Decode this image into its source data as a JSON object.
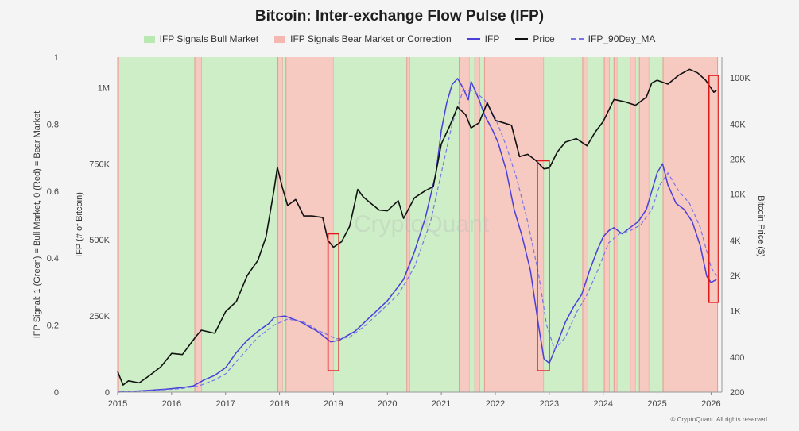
{
  "chart_data": {
    "type": "line",
    "title": "Bitcoin: Inter-exchange Flow Pulse (IFP)",
    "legend": [
      {
        "label": "IFP Signals Bull Market",
        "kind": "box",
        "color": "#b9e8b0"
      },
      {
        "label": "IFP Signals Bear Market or Correction",
        "kind": "box",
        "color": "#f5b8b0"
      },
      {
        "label": "IFP",
        "kind": "line",
        "color": "#4a3fd8"
      },
      {
        "label": "Price",
        "kind": "line",
        "color": "#111111"
      },
      {
        "label": "IFP_90Day_MA",
        "kind": "dash",
        "color": "#7a74e6"
      }
    ],
    "y_left_outer": {
      "label": "IFP Signal: 1 (Green) = Bull Market, 0 (Red) = Bear Market",
      "range": [
        0,
        1
      ],
      "ticks": [
        "0",
        "0.2",
        "0.4",
        "0.6",
        "0.8",
        "1"
      ]
    },
    "y_left_inner": {
      "label": "IFP (# of Bitcoin)",
      "range": [
        0,
        1100000
      ],
      "ticks": [
        {
          "v": 0,
          "label": "0"
        },
        {
          "v": 250000,
          "label": "250K"
        },
        {
          "v": 500000,
          "label": "500K"
        },
        {
          "v": 750000,
          "label": "750K"
        },
        {
          "v": 1000000,
          "label": "1M"
        }
      ]
    },
    "y_right": {
      "label": "Bitcoin Price ($)",
      "scale": "log",
      "range": [
        200,
        150000
      ],
      "ticks": [
        {
          "v": 200,
          "label": "200"
        },
        {
          "v": 400,
          "label": "400"
        },
        {
          "v": 1000,
          "label": "1K"
        },
        {
          "v": 2000,
          "label": "2K"
        },
        {
          "v": 4000,
          "label": "4K"
        },
        {
          "v": 10000,
          "label": "10K"
        },
        {
          "v": 20000,
          "label": "20K"
        },
        {
          "v": 40000,
          "label": "40K"
        },
        {
          "v": 100000,
          "label": "100K"
        }
      ]
    },
    "x_axis": {
      "range": [
        2015.0,
        2026.2
      ],
      "ticks": [
        {
          "v": 2015,
          "label": "2015"
        },
        {
          "v": 2016,
          "label": "2016"
        },
        {
          "v": 2017,
          "label": "2017"
        },
        {
          "v": 2018,
          "label": "2018"
        },
        {
          "v": 2019,
          "label": "2019"
        },
        {
          "v": 2020,
          "label": "2020"
        },
        {
          "v": 2021,
          "label": "2021"
        },
        {
          "v": 2022,
          "label": "2022"
        },
        {
          "v": 2023,
          "label": "2023"
        },
        {
          "v": 2024,
          "label": "2024"
        },
        {
          "v": 2025,
          "label": "2025"
        },
        {
          "v": 2026,
          "label": "2026"
        }
      ]
    },
    "regime_bands": [
      {
        "start": 2015.0,
        "end": 2015.03,
        "signal": "bear"
      },
      {
        "start": 2015.03,
        "end": 2016.43,
        "signal": "bull"
      },
      {
        "start": 2016.43,
        "end": 2016.56,
        "signal": "bear"
      },
      {
        "start": 2016.56,
        "end": 2017.97,
        "signal": "bull"
      },
      {
        "start": 2017.97,
        "end": 2018.06,
        "signal": "bear"
      },
      {
        "start": 2018.06,
        "end": 2018.12,
        "signal": "bull"
      },
      {
        "start": 2018.12,
        "end": 2019.0,
        "signal": "bear"
      },
      {
        "start": 2019.0,
        "end": 2020.36,
        "signal": "bull"
      },
      {
        "start": 2020.36,
        "end": 2020.42,
        "signal": "bear"
      },
      {
        "start": 2020.42,
        "end": 2021.33,
        "signal": "bull"
      },
      {
        "start": 2021.33,
        "end": 2021.52,
        "signal": "bear"
      },
      {
        "start": 2021.52,
        "end": 2021.62,
        "signal": "bull"
      },
      {
        "start": 2021.62,
        "end": 2021.72,
        "signal": "bear"
      },
      {
        "start": 2021.72,
        "end": 2021.8,
        "signal": "bull"
      },
      {
        "start": 2021.8,
        "end": 2022.9,
        "signal": "bear"
      },
      {
        "start": 2022.9,
        "end": 2023.62,
        "signal": "bull"
      },
      {
        "start": 2023.62,
        "end": 2023.72,
        "signal": "bear"
      },
      {
        "start": 2023.72,
        "end": 2024.02,
        "signal": "bull"
      },
      {
        "start": 2024.02,
        "end": 2024.12,
        "signal": "bear"
      },
      {
        "start": 2024.12,
        "end": 2024.2,
        "signal": "bull"
      },
      {
        "start": 2024.2,
        "end": 2024.26,
        "signal": "bear"
      },
      {
        "start": 2024.26,
        "end": 2024.5,
        "signal": "bull"
      },
      {
        "start": 2024.5,
        "end": 2024.6,
        "signal": "bear"
      },
      {
        "start": 2024.6,
        "end": 2024.67,
        "signal": "bull"
      },
      {
        "start": 2024.67,
        "end": 2024.85,
        "signal": "bear"
      },
      {
        "start": 2024.85,
        "end": 2025.11,
        "signal": "bull"
      },
      {
        "start": 2025.11,
        "end": 2026.12,
        "signal": "bear"
      }
    ],
    "highlight_boxes": [
      {
        "x0": 2018.9,
        "x1": 2019.1,
        "y0": 70000,
        "y1": 520000
      },
      {
        "x0": 2022.78,
        "x1": 2023.0,
        "y0": 70000,
        "y1": 760000
      },
      {
        "x0": 2025.96,
        "x1": 2026.14,
        "y0": 295000,
        "y1": 1040000
      }
    ],
    "series": [
      {
        "name": "IFP",
        "axis": "ifp",
        "color": "#4a3fd8",
        "dash": false,
        "x": [
          2015.0,
          2015.5,
          2015.9,
          2016.2,
          2016.4,
          2016.6,
          2016.8,
          2017.0,
          2017.2,
          2017.4,
          2017.6,
          2017.8,
          2017.9,
          2018.1,
          2018.4,
          2018.7,
          2018.95,
          2019.1,
          2019.4,
          2019.7,
          2020.0,
          2020.3,
          2020.5,
          2020.7,
          2020.9,
          2021.0,
          2021.1,
          2021.2,
          2021.3,
          2021.4,
          2021.5,
          2021.55,
          2021.7,
          2021.8,
          2021.95,
          2022.05,
          2022.2,
          2022.35,
          2022.5,
          2022.65,
          2022.8,
          2022.9,
          2023.0,
          2023.15,
          2023.3,
          2023.45,
          2023.6,
          2023.75,
          2023.9,
          2024.0,
          2024.1,
          2024.2,
          2024.35,
          2024.5,
          2024.65,
          2024.8,
          2024.9,
          2025.0,
          2025.1,
          2025.2,
          2025.35,
          2025.5,
          2025.65,
          2025.8,
          2025.92,
          2026.0,
          2026.1
        ],
        "y": [
          0,
          5000,
          10000,
          15000,
          20000,
          40000,
          55000,
          80000,
          130000,
          170000,
          200000,
          225000,
          245000,
          250000,
          230000,
          200000,
          165000,
          170000,
          200000,
          250000,
          300000,
          370000,
          460000,
          570000,
          720000,
          860000,
          950000,
          1010000,
          1030000,
          1000000,
          960000,
          1020000,
          960000,
          910000,
          860000,
          820000,
          730000,
          600000,
          510000,
          400000,
          220000,
          110000,
          95000,
          160000,
          230000,
          280000,
          320000,
          400000,
          470000,
          510000,
          530000,
          540000,
          520000,
          540000,
          560000,
          600000,
          660000,
          720000,
          750000,
          680000,
          620000,
          600000,
          560000,
          480000,
          380000,
          360000,
          370000
        ]
      },
      {
        "name": "IFP_90Day_MA",
        "axis": "ifp",
        "color": "#7a74e6",
        "dash": true,
        "x": [
          2015.0,
          2015.5,
          2015.9,
          2016.2,
          2016.5,
          2016.8,
          2017.0,
          2017.3,
          2017.6,
          2017.9,
          2018.15,
          2018.45,
          2018.75,
          2019.05,
          2019.3,
          2019.6,
          2019.9,
          2020.2,
          2020.5,
          2020.8,
          2021.0,
          2021.2,
          2021.4,
          2021.6,
          2021.8,
          2022.0,
          2022.2,
          2022.4,
          2022.6,
          2022.8,
          2022.95,
          2023.1,
          2023.3,
          2023.5,
          2023.7,
          2023.9,
          2024.1,
          2024.3,
          2024.5,
          2024.7,
          2024.9,
          2025.05,
          2025.2,
          2025.4,
          2025.6,
          2025.8,
          2026.0,
          2026.1
        ],
        "y": [
          0,
          3000,
          8000,
          12000,
          20000,
          40000,
          60000,
          120000,
          180000,
          220000,
          240000,
          230000,
          200000,
          175000,
          180000,
          220000,
          270000,
          320000,
          410000,
          560000,
          720000,
          880000,
          990000,
          990000,
          960000,
          900000,
          810000,
          700000,
          560000,
          390000,
          220000,
          140000,
          180000,
          260000,
          320000,
          400000,
          490000,
          520000,
          530000,
          550000,
          600000,
          680000,
          720000,
          660000,
          620000,
          540000,
          410000,
          380000
        ]
      },
      {
        "name": "Price",
        "axis": "price",
        "color": "#111111",
        "dash": false,
        "x": [
          2015.0,
          2015.1,
          2015.2,
          2015.4,
          2015.6,
          2015.8,
          2016.0,
          2016.2,
          2016.45,
          2016.55,
          2016.8,
          2017.0,
          2017.2,
          2017.4,
          2017.6,
          2017.75,
          2017.9,
          2017.96,
          2018.05,
          2018.15,
          2018.3,
          2018.45,
          2018.6,
          2018.8,
          2018.9,
          2019.0,
          2019.15,
          2019.3,
          2019.45,
          2019.55,
          2019.7,
          2019.85,
          2020.0,
          2020.2,
          2020.3,
          2020.5,
          2020.7,
          2020.85,
          2021.0,
          2021.15,
          2021.3,
          2021.45,
          2021.55,
          2021.7,
          2021.85,
          2022.0,
          2022.15,
          2022.3,
          2022.45,
          2022.6,
          2022.75,
          2022.9,
          2023.0,
          2023.15,
          2023.3,
          2023.5,
          2023.7,
          2023.85,
          2024.0,
          2024.2,
          2024.4,
          2024.6,
          2024.8,
          2024.9,
          2025.0,
          2025.2,
          2025.4,
          2025.6,
          2025.75,
          2025.9,
          2026.05,
          2026.1
        ],
        "y": [
          300,
          230,
          250,
          240,
          280,
          330,
          430,
          420,
          600,
          680,
          640,
          980,
          1200,
          2000,
          2700,
          4300,
          11000,
          17000,
          11500,
          8000,
          9000,
          6500,
          6500,
          6300,
          4000,
          3500,
          3900,
          5300,
          11000,
          9500,
          8300,
          7300,
          7200,
          8800,
          6200,
          9300,
          10700,
          11600,
          27000,
          38000,
          56000,
          48000,
          37000,
          41000,
          61000,
          43000,
          41000,
          39000,
          21000,
          22000,
          19500,
          16500,
          16800,
          23000,
          28000,
          30000,
          26000,
          34000,
          42000,
          65000,
          62000,
          58000,
          68000,
          90000,
          95000,
          88000,
          105000,
          118000,
          110000,
          95000,
          75000,
          78000
        ]
      }
    ],
    "watermark": "CryptoQuant",
    "copyright": "© CryptoQuant. All rights reserved"
  }
}
